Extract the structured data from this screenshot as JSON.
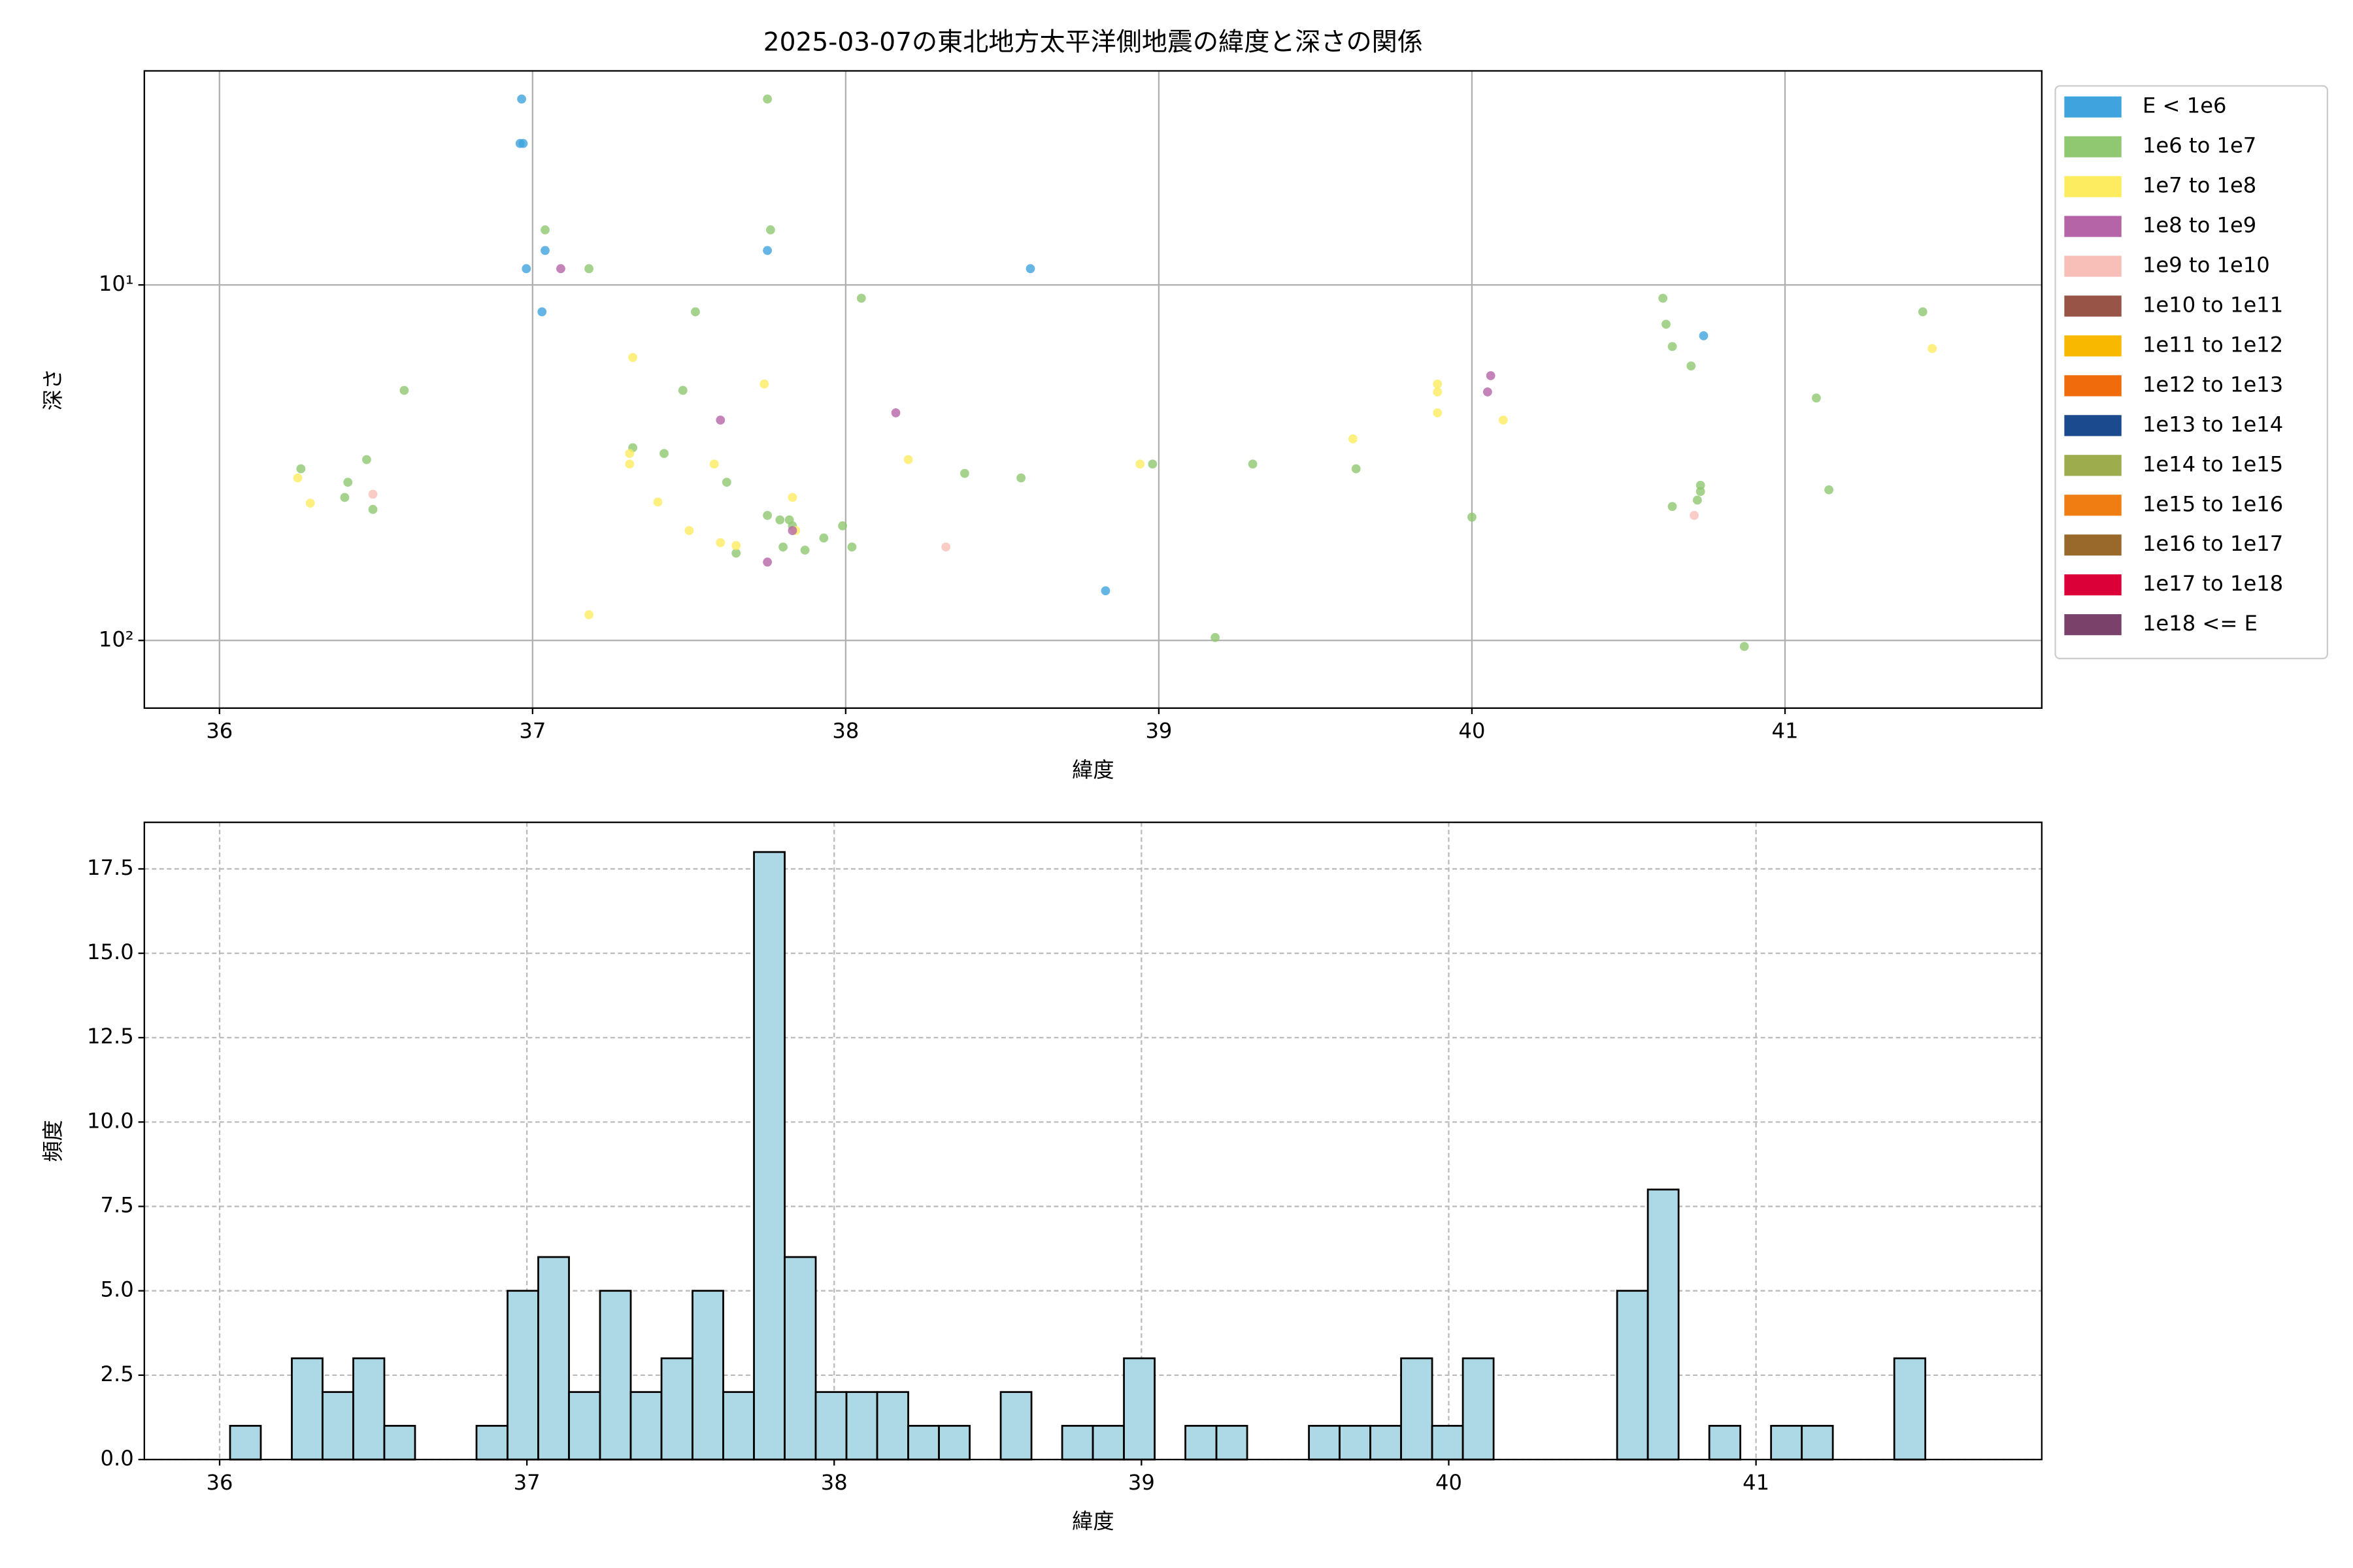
{
  "chart_data": [
    {
      "type": "scatter",
      "title": "2025-03-07の東北地方太平洋側地震の緯度と深さの関係",
      "x_label": "緯度",
      "y_label": "深さ",
      "xlim": [
        35.76,
        41.82
      ],
      "xticks": [
        36,
        37,
        38,
        39,
        40,
        41
      ],
      "ylim": [
        2.5,
        155
      ],
      "y_scale": "log",
      "y_inverted": true,
      "yticks": [
        {
          "value": 10,
          "label": "10¹"
        },
        {
          "value": 100,
          "label": "10²"
        }
      ],
      "grid": true,
      "legend": "outside right",
      "series": [
        {
          "name": "E < 1e6",
          "color": "#3fa4dd",
          "x": [
            36.965,
            36.96,
            36.97,
            36.98,
            37.04,
            37.03,
            37.75,
            38.59,
            38.83,
            40.74
          ],
          "y": [
            3.0,
            4.0,
            4.0,
            9.0,
            8.0,
            11.9,
            8.0,
            9.0,
            72.5,
            13.9
          ]
        },
        {
          "name": "1e6 to 1e7",
          "color": "#8fc870",
          "x": [
            37.75,
            37.04,
            37.76,
            37.18,
            38.05,
            37.52,
            36.59,
            37.48,
            37.32,
            37.42,
            36.26,
            36.47,
            36.41,
            36.4,
            36.49,
            37.62,
            38.38,
            38.56,
            38.98,
            39.3,
            39.63,
            37.75,
            37.79,
            37.82,
            37.83,
            37.99,
            37.93,
            37.8,
            38.02,
            37.65,
            37.87,
            39.18,
            40.0,
            40.61,
            40.62,
            40.64,
            40.7,
            41.1,
            41.44,
            40.73,
            40.73,
            40.72,
            40.64,
            41.14,
            40.87
          ],
          "y": [
            3.0,
            7.0,
            7.0,
            9.0,
            10.9,
            11.9,
            19.8,
            19.8,
            28.7,
            29.8,
            32.9,
            31.0,
            35.9,
            39.6,
            42.8,
            35.9,
            33.9,
            34.9,
            31.9,
            31.9,
            32.9,
            44.5,
            45.8,
            45.8,
            47.6,
            47.6,
            51.5,
            54.6,
            54.6,
            56.8,
            55.7,
            98.1,
            45.0,
            10.9,
            12.9,
            14.9,
            16.9,
            20.8,
            11.9,
            36.6,
            38.1,
            40.3,
            42.0,
            37.7,
            104
          ]
        },
        {
          "name": "1e7 to 1e8",
          "color": "#fdec60",
          "x": [
            36.25,
            36.29,
            37.32,
            37.74,
            37.31,
            37.31,
            37.58,
            37.4,
            37.5,
            37.6,
            37.65,
            37.83,
            37.84,
            38.2,
            38.94,
            39.62,
            39.89,
            39.89,
            39.89,
            40.1,
            41.47,
            37.18
          ],
          "y": [
            34.9,
            41.1,
            16.0,
            19.0,
            29.8,
            31.9,
            31.9,
            40.8,
            49.1,
            53.1,
            54.1,
            39.6,
            49.1,
            31.0,
            31.9,
            27.1,
            19.0,
            20.0,
            22.9,
            24.0,
            15.1,
            84.7
          ]
        },
        {
          "name": "1e8 to 1e9",
          "color": "#b565a7",
          "x": [
            37.6,
            38.16,
            37.75,
            40.06,
            40.05,
            37.09,
            37.83
          ],
          "y": [
            24.0,
            22.9,
            60.2,
            18.0,
            20.0,
            9.0,
            49.1
          ]
        },
        {
          "name": "1e9 to 1e10",
          "color": "#f7bfb8",
          "x": [
            36.49,
            38.32,
            40.71
          ],
          "y": [
            38.8,
            54.6,
            44.5
          ]
        },
        {
          "name": "1e10 to 1e11",
          "color": "#995448",
          "x": [],
          "y": []
        },
        {
          "name": "1e11 to 1e12",
          "color": "#f8b800",
          "x": [],
          "y": []
        },
        {
          "name": "1e12 to 1e13",
          "color": "#ef6b0c",
          "x": [],
          "y": []
        },
        {
          "name": "1e13 to 1e14",
          "color": "#1c4a8f",
          "x": [],
          "y": []
        },
        {
          "name": "1e14 to 1e15",
          "color": "#9dad4e",
          "x": [],
          "y": []
        },
        {
          "name": "1e15 to 1e16",
          "color": "#ef7d12",
          "x": [],
          "y": []
        },
        {
          "name": "1e16 to 1e17",
          "color": "#98692a",
          "x": [],
          "y": []
        },
        {
          "name": "1e17 to 1e18",
          "color": "#dc0038",
          "x": [],
          "y": []
        },
        {
          "name": "1e18 <= E",
          "color": "#7a416b",
          "x": [],
          "y": []
        }
      ]
    },
    {
      "type": "histogram",
      "x_label": "緯度",
      "y_label": "頻度",
      "color": "#add8e6",
      "xlim": [
        35.755,
        41.93
      ],
      "xticks": [
        36,
        37,
        38,
        39,
        40,
        41
      ],
      "ylim": [
        0,
        18.88
      ],
      "yticks": [
        {
          "value": 0,
          "label": "0.0"
        },
        {
          "value": 2.5,
          "label": "2.5"
        },
        {
          "value": 5,
          "label": "5.0"
        },
        {
          "value": 7.5,
          "label": "7.5"
        },
        {
          "value": 10,
          "label": "10.0"
        },
        {
          "value": 12.5,
          "label": "12.5"
        },
        {
          "value": 15,
          "label": "15.0"
        },
        {
          "value": 17.5,
          "label": "17.5"
        }
      ],
      "grid": true,
      "bins": [
        36.034,
        36.134,
        36.235,
        36.335,
        36.435,
        36.536,
        36.636,
        36.736,
        36.836,
        36.937,
        37.037,
        37.137,
        37.238,
        37.338,
        37.438,
        37.539,
        37.639,
        37.739,
        37.839,
        37.94,
        38.04,
        38.14,
        38.241,
        38.341,
        38.441,
        38.542,
        38.642,
        38.742,
        38.842,
        38.943,
        39.043,
        39.143,
        39.244,
        39.344,
        39.444,
        39.545,
        39.645,
        39.745,
        39.845,
        39.946,
        40.046,
        40.146,
        40.247,
        40.347,
        40.447,
        40.548,
        40.648,
        40.748,
        40.848,
        40.949,
        41.049,
        41.149,
        41.25,
        41.35,
        41.45,
        41.551,
        41.651
      ],
      "values": [
        1,
        0,
        3,
        2,
        3,
        1,
        0,
        0,
        1,
        5,
        6,
        2,
        5,
        2,
        3,
        5,
        2,
        18,
        6,
        2,
        2,
        2,
        1,
        1,
        0,
        2,
        0,
        1,
        1,
        3,
        0,
        1,
        1,
        0,
        0,
        1,
        1,
        1,
        3,
        1,
        3,
        0,
        0,
        0,
        0,
        5,
        8,
        0,
        1,
        0,
        1,
        1,
        0,
        0,
        3,
        0
      ]
    }
  ]
}
